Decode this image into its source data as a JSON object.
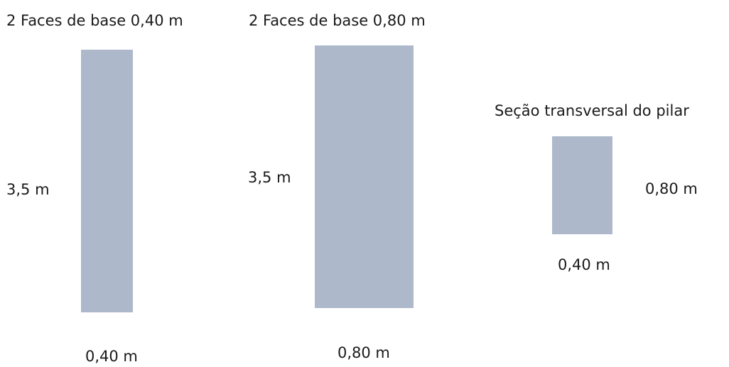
{
  "diagram": {
    "fill_color": "#adb9ca",
    "text_color": "#1a1a1a",
    "face_small": {
      "title": "2 Faces de base 0,40 m",
      "height_label": "3,5 m",
      "width_label": "0,40 m"
    },
    "face_large": {
      "title": "2 Faces de base 0,80 m",
      "height_label": "3,5 m",
      "width_label": "0,80 m"
    },
    "cross_section": {
      "title": "Seção transversal do pilar",
      "height_label": "0,80 m",
      "width_label": "0,40 m"
    }
  }
}
